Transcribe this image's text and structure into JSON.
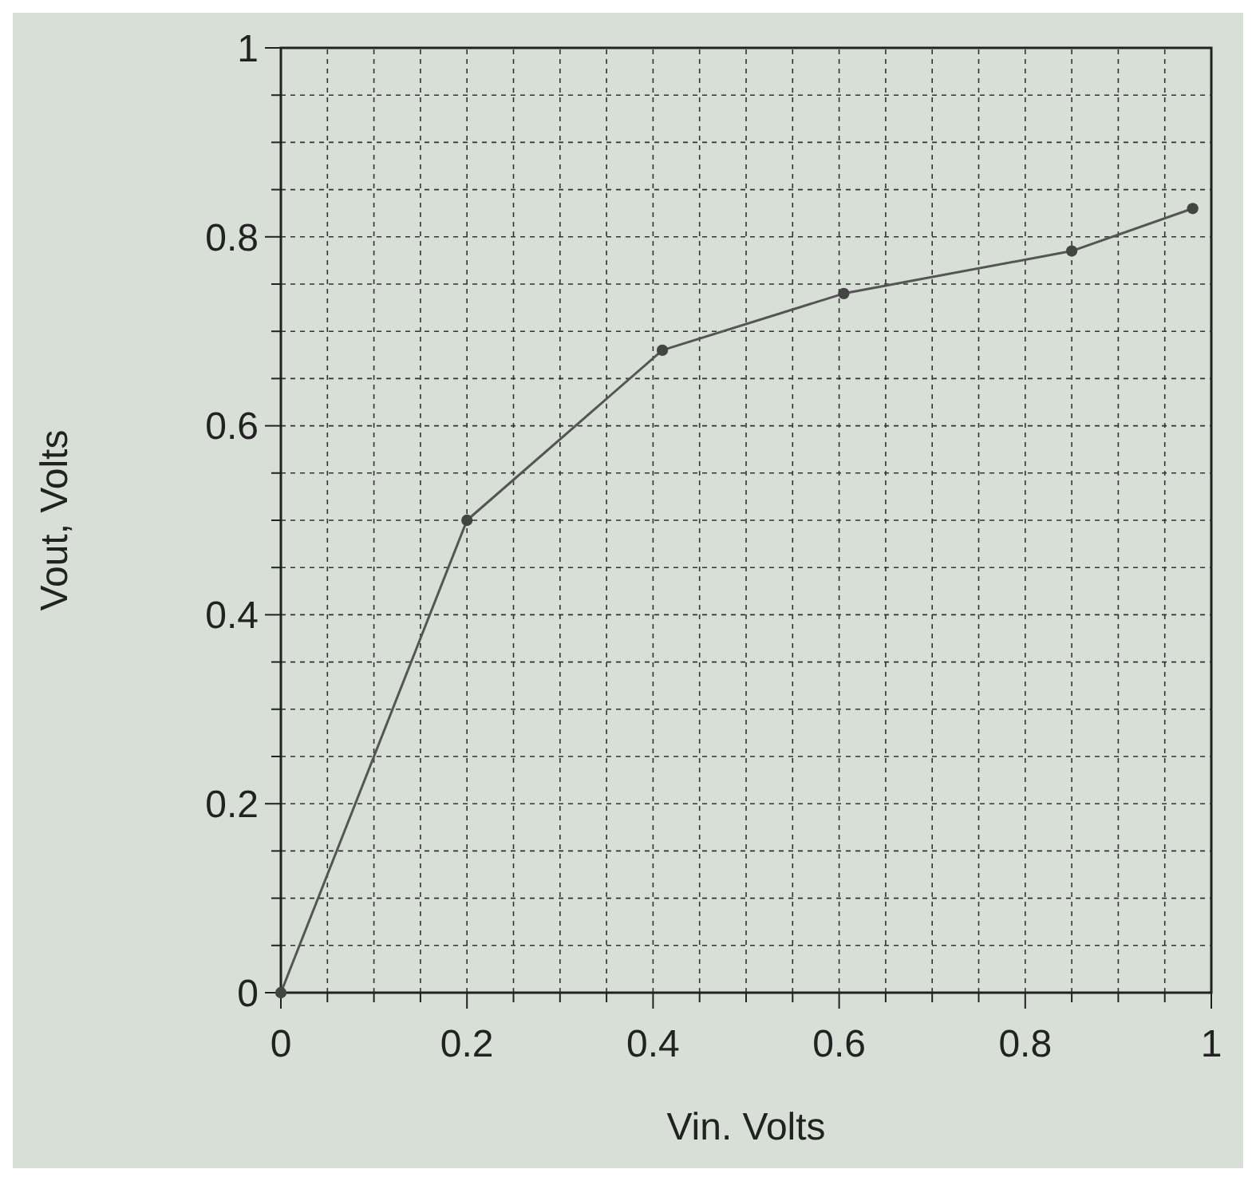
{
  "chart_data": {
    "type": "line",
    "xlabel": "Vin. Volts",
    "ylabel": "Vout, Volts",
    "x": [
      0,
      0.2,
      0.41,
      0.605,
      0.85,
      0.98
    ],
    "series": [
      {
        "color": "#555555",
        "values": [
          0,
          0.5,
          0.68,
          0.74,
          0.785,
          0.83
        ]
      }
    ],
    "xlim": [
      0,
      1
    ],
    "ylim": [
      0,
      1
    ],
    "xticks": [
      0,
      {
        "value": 0.05,
        "label": null
      },
      {
        "value": 0.1,
        "label": null
      },
      {
        "value": 0.15,
        "label": null
      },
      0.2,
      {
        "value": 0.25,
        "label": null
      },
      {
        "value": 0.3,
        "label": null
      },
      {
        "value": 0.35,
        "label": null
      },
      0.4,
      {
        "value": 0.45,
        "label": null
      },
      {
        "value": 0.5,
        "label": null
      },
      {
        "value": 0.55,
        "label": null
      },
      0.6,
      {
        "value": 0.65,
        "label": null
      },
      {
        "value": 0.7,
        "label": null
      },
      {
        "value": 0.75,
        "label": null
      },
      0.8,
      {
        "value": 0.85,
        "label": null
      },
      {
        "value": 0.9,
        "label": null
      },
      {
        "value": 0.95,
        "label": null
      },
      1
    ],
    "yticks": [
      0,
      {
        "value": 0.05,
        "label": null
      },
      {
        "value": 0.1,
        "label": null
      },
      {
        "value": 0.15,
        "label": null
      },
      0.2,
      {
        "value": 0.25,
        "label": null
      },
      {
        "value": 0.3,
        "label": null
      },
      {
        "value": 0.35,
        "label": null
      },
      0.4,
      {
        "value": 0.45,
        "label": null
      },
      {
        "value": 0.5,
        "label": null
      },
      {
        "value": 0.55,
        "label": null
      },
      0.6,
      {
        "value": 0.65,
        "label": null
      },
      {
        "value": 0.7,
        "label": null
      },
      {
        "value": 0.75,
        "label": null
      },
      0.8,
      {
        "value": 0.85,
        "label": null
      },
      {
        "value": 0.9,
        "label": null
      },
      {
        "value": 0.95,
        "label": null
      },
      1
    ],
    "grid": true,
    "marker": "circle",
    "line_style": "solid"
  }
}
